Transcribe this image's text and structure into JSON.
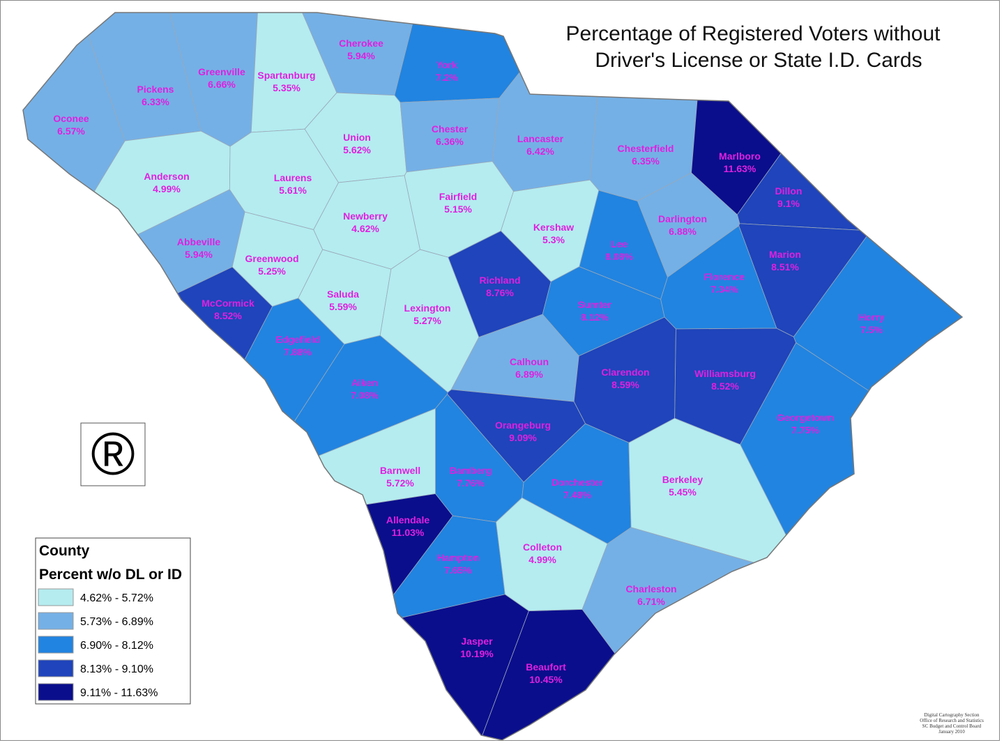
{
  "title": [
    "Percentage of Registered Voters without",
    "Driver's License or State I.D. Cards"
  ],
  "legend": {
    "title": "County",
    "subtitle": "Percent w/o DL or ID",
    "classes": [
      {
        "label": "4.62% - 5.72%",
        "color": "#b4ecf0"
      },
      {
        "label": "5.73% - 6.89%",
        "color": "#74b0e6"
      },
      {
        "label": "6.90% - 8.12%",
        "color": "#2184e0"
      },
      {
        "label": "8.13% - 9.10%",
        "color": "#1f44bb"
      },
      {
        "label": "9.11% - 11.63%",
        "color": "#0a0e8c"
      }
    ]
  },
  "symbol": "®",
  "credits": [
    "Digital Cartography Section",
    "Office of Research and Statistics",
    "SC Budget and Control Board",
    "January 2010"
  ],
  "counties": [
    {
      "name": "Oconee",
      "label": "6.57%",
      "class": 1
    },
    {
      "name": "Pickens",
      "label": "6.33%",
      "class": 1
    },
    {
      "name": "Greenville",
      "label": "6.66%",
      "class": 1
    },
    {
      "name": "Spartanburg",
      "label": "5.35%",
      "class": 0
    },
    {
      "name": "Cherokee",
      "label": "5.94%",
      "class": 1
    },
    {
      "name": "York",
      "label": "7.2%",
      "class": 2
    },
    {
      "name": "Anderson",
      "label": "4.99%",
      "class": 0
    },
    {
      "name": "Laurens",
      "label": "5.61%",
      "class": 0
    },
    {
      "name": "Union",
      "label": "5.62%",
      "class": 0
    },
    {
      "name": "Chester",
      "label": "6.36%",
      "class": 1
    },
    {
      "name": "Lancaster",
      "label": "6.42%",
      "class": 1
    },
    {
      "name": "Chesterfield",
      "label": "6.35%",
      "class": 1
    },
    {
      "name": "Marlboro",
      "label": "11.63%",
      "class": 4
    },
    {
      "name": "Dillon",
      "label": "9.1%",
      "class": 3
    },
    {
      "name": "Abbeville",
      "label": "5.94%",
      "class": 1
    },
    {
      "name": "Greenwood",
      "label": "5.25%",
      "class": 0
    },
    {
      "name": "Newberry",
      "label": "4.62%",
      "class": 0
    },
    {
      "name": "Fairfield",
      "label": "5.15%",
      "class": 0
    },
    {
      "name": "Kershaw",
      "label": "5.3%",
      "class": 0
    },
    {
      "name": "Darlington",
      "label": "6.88%",
      "class": 1
    },
    {
      "name": "Lee",
      "label": "8.08%",
      "class": 2
    },
    {
      "name": "Marion",
      "label": "8.51%",
      "class": 3
    },
    {
      "name": "McCormick",
      "label": "8.52%",
      "class": 3
    },
    {
      "name": "Saluda",
      "label": "5.59%",
      "class": 0
    },
    {
      "name": "Lexington",
      "label": "5.27%",
      "class": 0
    },
    {
      "name": "Richland",
      "label": "8.76%",
      "class": 3
    },
    {
      "name": "Sumter",
      "label": "8.12%",
      "class": 2
    },
    {
      "name": "Florence",
      "label": "7.34%",
      "class": 2
    },
    {
      "name": "Horry",
      "label": "7.5%",
      "class": 2
    },
    {
      "name": "Edgefield",
      "label": "7.88%",
      "class": 2
    },
    {
      "name": "Aiken",
      "label": "7.08%",
      "class": 2
    },
    {
      "name": "Calhoun",
      "label": "6.89%",
      "class": 1
    },
    {
      "name": "Clarendon",
      "label": "8.59%",
      "class": 3
    },
    {
      "name": "Williamsburg",
      "label": "8.52%",
      "class": 3
    },
    {
      "name": "Georgetown",
      "label": "7.75%",
      "class": 2
    },
    {
      "name": "Orangeburg",
      "label": "9.09%",
      "class": 3
    },
    {
      "name": "Barnwell",
      "label": "5.72%",
      "class": 0
    },
    {
      "name": "Bamberg",
      "label": "7.76%",
      "class": 2
    },
    {
      "name": "Dorchester",
      "label": "7.48%",
      "class": 2
    },
    {
      "name": "Berkeley",
      "label": "5.45%",
      "class": 0
    },
    {
      "name": "Allendale",
      "label": "11.03%",
      "class": 4
    },
    {
      "name": "Hampton",
      "label": "7.65%",
      "class": 2
    },
    {
      "name": "Colleton",
      "label": "4.99%",
      "class": 0
    },
    {
      "name": "Charleston",
      "label": "6.71%",
      "class": 1
    },
    {
      "name": "Jasper",
      "label": "10.19%",
      "class": 4
    },
    {
      "name": "Beaufort",
      "label": "10.45%",
      "class": 4
    }
  ]
}
